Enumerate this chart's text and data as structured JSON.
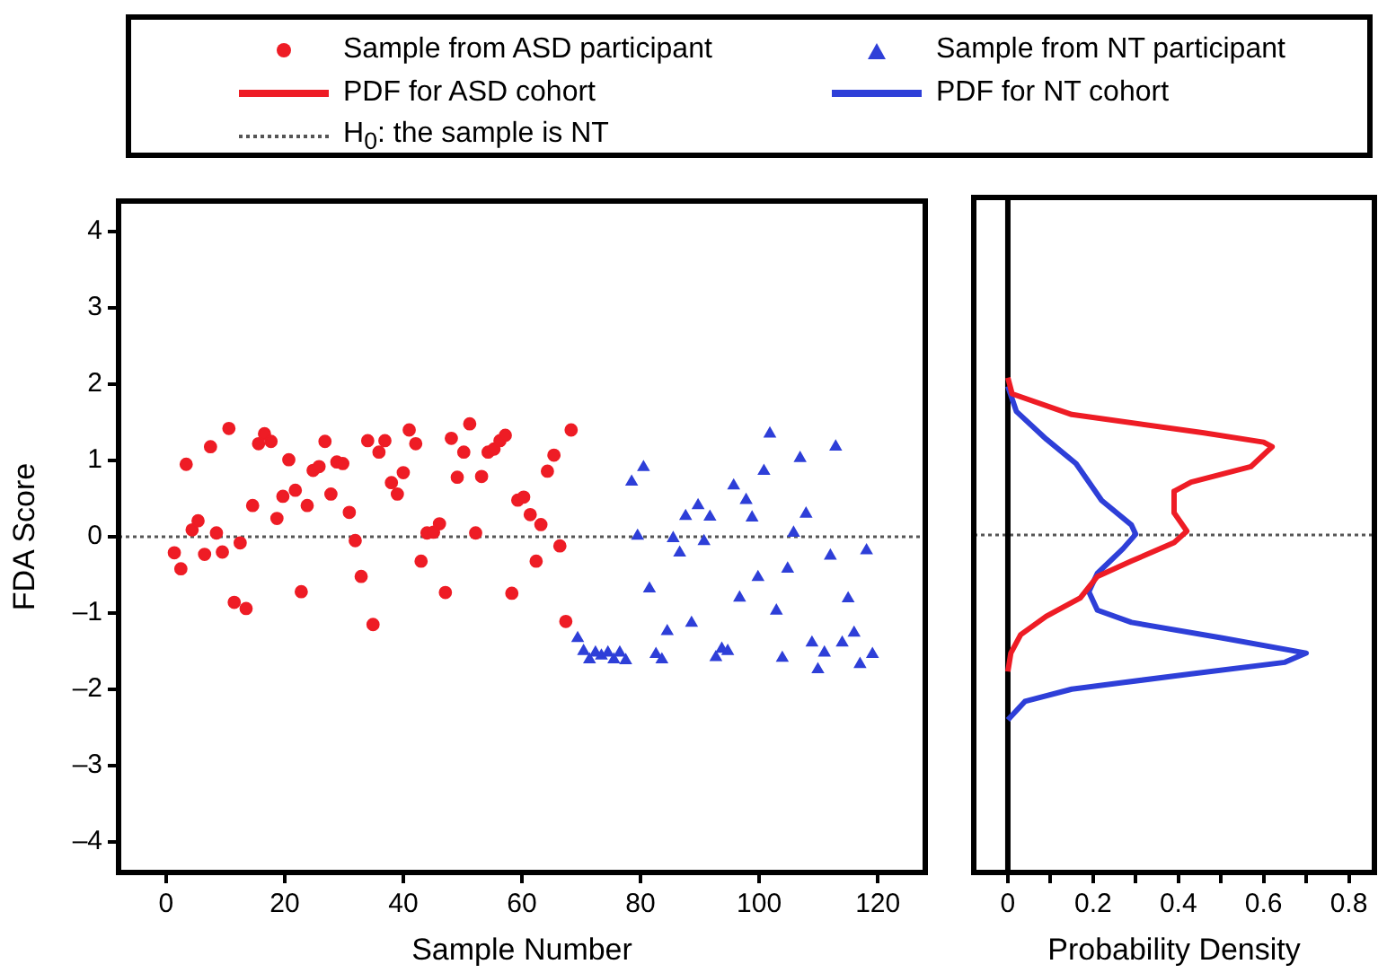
{
  "chart_data": [
    {
      "type": "scatter",
      "xlabel": "Sample Number",
      "ylabel": "FDA Score",
      "legend": "top",
      "xlim": [
        -8,
        128
      ],
      "xticks": [
        0,
        20,
        40,
        60,
        80,
        100,
        120
      ],
      "ylim": [
        -4.4,
        4.4
      ],
      "yticks": [
        {
          "value": -4,
          "label": "–4"
        },
        {
          "value": -3,
          "label": "–3"
        },
        {
          "value": -2,
          "label": "–2"
        },
        {
          "value": -1,
          "label": "–1"
        },
        0,
        1,
        2,
        3,
        4
      ],
      "grid": false,
      "series": [
        {
          "name": "Sample from ASD participant",
          "color": "#ee1c25",
          "marker": "circle",
          "x": [
            1.4,
            2.5,
            3.4,
            4.4,
            5.4,
            6.5,
            7.5,
            8.5,
            9.5,
            10.6,
            11.5,
            12.5,
            13.5,
            14.6,
            15.6,
            16.6,
            17.7,
            18.7,
            19.7,
            20.7,
            21.8,
            22.8,
            23.8,
            24.8,
            25.8,
            26.8,
            27.8,
            28.8,
            29.8,
            30.9,
            31.9,
            32.9,
            34,
            34.9,
            35.9,
            36.9,
            38,
            39,
            40,
            41,
            42.1,
            43,
            44,
            45.1,
            46.1,
            47.1,
            48.1,
            49.1,
            50.2,
            51.2,
            52.2,
            53.2,
            54.3,
            55.3,
            56.3,
            57.2,
            58.3,
            59.3,
            60.3,
            61.4,
            62.4,
            63.2,
            64.3,
            65.4,
            66.4,
            67.4,
            68.3
          ],
          "values": [
            -0.21,
            -0.42,
            0.95,
            0.09,
            0.21,
            -0.23,
            1.18,
            0.05,
            -0.2,
            1.42,
            -0.86,
            -0.08,
            -0.94,
            0.41,
            1.22,
            1.35,
            1.25,
            0.24,
            0.53,
            1.01,
            0.61,
            -0.72,
            0.41,
            0.87,
            0.92,
            1.25,
            0.56,
            0.98,
            0.96,
            0.32,
            -0.05,
            -0.52,
            1.26,
            -1.15,
            1.11,
            1.26,
            0.71,
            0.56,
            0.84,
            1.4,
            1.22,
            -0.32,
            0.05,
            0.06,
            0.17,
            -0.73,
            1.29,
            0.78,
            1.11,
            1.48,
            0.05,
            0.79,
            1.11,
            1.15,
            1.26,
            1.33,
            -0.74,
            0.48,
            0.52,
            0.29,
            -0.32,
            0.16,
            0.86,
            1.07,
            -0.12,
            -1.11,
            1.4
          ]
        },
        {
          "name": "Sample from NT participant",
          "color": "#2e3fd8",
          "marker": "triangle",
          "x": [
            69.4,
            70.4,
            71.4,
            72.4,
            73.4,
            74.5,
            75.5,
            76.5,
            77.5,
            78.5,
            79.5,
            80.5,
            81.5,
            82.6,
            83.6,
            84.5,
            85.5,
            86.6,
            87.6,
            88.6,
            89.7,
            90.7,
            91.7,
            92.7,
            93.7,
            94.7,
            95.7,
            96.7,
            97.8,
            98.8,
            99.8,
            100.8,
            101.8,
            102.9,
            103.9,
            104.8,
            105.8,
            106.9,
            107.9,
            108.9,
            109.9,
            111,
            112,
            112.9,
            114,
            115,
            116,
            117,
            118.1,
            119.1
          ],
          "values": [
            -1.33,
            -1.5,
            -1.61,
            -1.52,
            -1.56,
            -1.52,
            -1.61,
            -1.52,
            -1.62,
            0.72,
            0.01,
            0.91,
            -0.68,
            -1.54,
            -1.61,
            -1.24,
            -0.02,
            -0.21,
            0.27,
            -1.13,
            0.41,
            -0.06,
            0.26,
            -1.58,
            -1.47,
            -1.5,
            0.67,
            -0.8,
            0.48,
            0.25,
            -0.53,
            0.86,
            1.35,
            -0.97,
            -1.59,
            -0.42,
            0.05,
            1.03,
            0.3,
            -1.39,
            -1.74,
            -1.52,
            -0.25,
            1.18,
            -1.39,
            -0.81,
            -1.26,
            -1.67,
            -0.18,
            -1.54
          ]
        }
      ],
      "ref_lines": [
        {
          "axis": "y",
          "value": 0,
          "label": "H$_{0}$: the sample is NT",
          "color": "#555555",
          "line_style": "dotted"
        }
      ]
    },
    {
      "type": "line",
      "xlabel": "Probability Density",
      "legend": "top",
      "tick_labels": "x",
      "xlim": [
        -0.08,
        0.86
      ],
      "xticks": [
        0,
        {
          "value": 0.1,
          "label": null
        },
        0.2,
        {
          "value": 0.3,
          "label": null
        },
        0.4,
        {
          "value": 0.5,
          "label": null
        },
        0.6,
        {
          "value": 0.7,
          "label": null
        },
        0.8
      ],
      "ylim": [
        -4.4,
        4.4
      ],
      "grid": false,
      "marker": "none",
      "line_style": "solid",
      "series": [
        {
          "name": "PDF for ASD cohort",
          "color": "#ee1c25",
          "x": [
            0,
            0.01,
            0.15,
            0.46,
            0.6,
            0.62,
            0.57,
            0.43,
            0.39,
            0.39,
            0.42,
            0.39,
            0.29,
            0.21,
            0.17,
            0.09,
            0.03,
            0.007,
            0
          ],
          "values": [
            2.05,
            1.84,
            1.57,
            1.33,
            1.21,
            1.15,
            0.89,
            0.69,
            0.57,
            0.29,
            0.05,
            -0.1,
            -0.34,
            -0.54,
            -0.82,
            -1.06,
            -1.3,
            -1.54,
            -1.78
          ]
        },
        {
          "name": "PDF for NT cohort",
          "color": "#2e3fd8",
          "x": [
            0,
            0.02,
            0.09,
            0.16,
            0.22,
            0.29,
            0.3,
            0.27,
            0.21,
            0.19,
            0.21,
            0.29,
            0.5,
            0.7,
            0.65,
            0.43,
            0.15,
            0.04,
            0
          ],
          "values": [
            1.94,
            1.61,
            1.25,
            0.93,
            0.45,
            0.13,
            0.01,
            -0.18,
            -0.5,
            -0.74,
            -0.98,
            -1.14,
            -1.34,
            -1.54,
            -1.66,
            -1.81,
            -2.01,
            -2.17,
            -2.41
          ]
        }
      ],
      "ref_lines": [
        {
          "axis": "y",
          "value": 0,
          "color": "#555555",
          "line_style": "dotted"
        },
        {
          "axis": "x",
          "value": 0,
          "color": "#000000",
          "line_style": "solid"
        }
      ]
    }
  ]
}
